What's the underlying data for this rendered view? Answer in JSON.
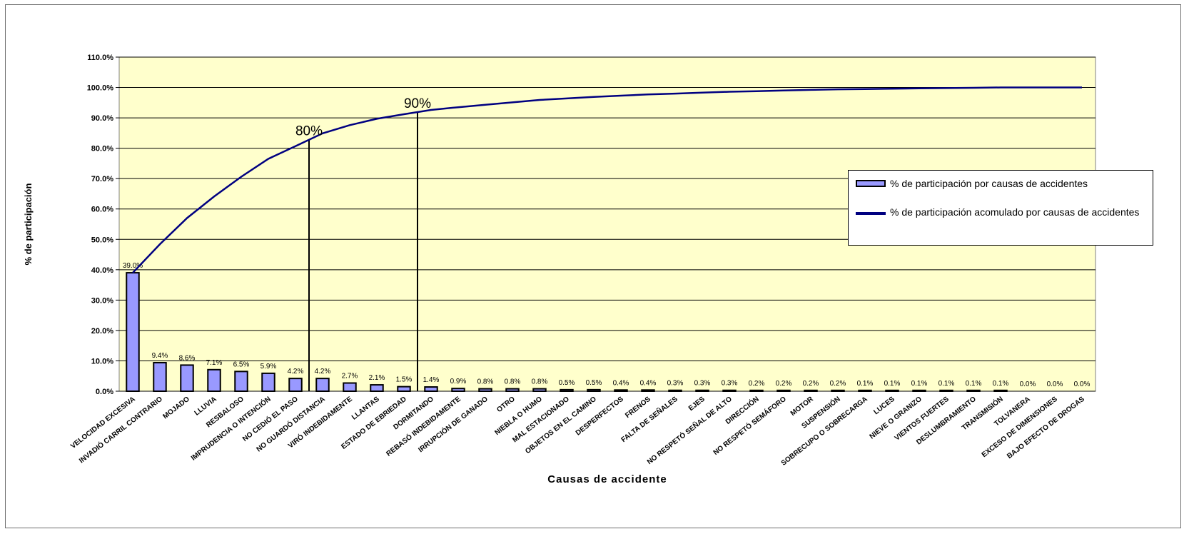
{
  "chart_data": {
    "type": "bar",
    "xlabel": "Causas de accidente",
    "ylabel": "% de participación",
    "ylim": [
      0,
      110
    ],
    "y_ticks": [
      "0.0%",
      "10.0%",
      "20.0%",
      "30.0%",
      "40.0%",
      "50.0%",
      "60.0%",
      "70.0%",
      "80.0%",
      "90.0%",
      "100.0%",
      "110.0%"
    ],
    "grid": "horizontal",
    "plot_background": "#ffffcc",
    "legend_position": "right",
    "categories": [
      "VELOCIDAD EXCESIVA",
      "INVADIÓ CARRIL CONTRARIO",
      "MOJADO",
      "LLUVIA",
      "RESBALOSO",
      "IMPRUDENCIA O INTENCIÓN",
      "NO CEDIÓ EL PASO",
      "NO GUARDÓ DISTANCIA",
      "VIRÓ INDEBIDAMENTE",
      "LLANTAS",
      "ESTADO DE EBRIEDAD",
      "DORMITANDO",
      "REBASÓ INDEBIDAMENTE",
      "IRRUPCIÓN DE GANADO",
      "OTRO",
      "NIEBLA O HUMO",
      "MAL ESTACIONADO",
      "OBJETOS EN EL CAMINO",
      "DESPERFECTOS",
      "FRENOS",
      "FALTA DE SEÑALES",
      "EJES",
      "NO RESPETÓ SEÑAL DE ALTO",
      "DIRECCIÓN",
      "NO RESPETÓ SEMÁFORO",
      "MOTOR",
      "SUSPENSIÓN",
      "SOBRECUPO O SOBRECARGA",
      "LUCES",
      "NIEVE O GRANIZO",
      "VIENTOS FUERTES",
      "DESLUMBRAMIENTO",
      "TRANSMISIÓN",
      "TOLVANERA",
      "EXCESO DE DIMENSIONES",
      "BAJO EFECTO DE DROGAS"
    ],
    "series": [
      {
        "name": "% de participación por causas de accidentes",
        "type": "bar",
        "color": "#9999ff",
        "values": [
          39.0,
          9.4,
          8.6,
          7.1,
          6.5,
          5.9,
          4.2,
          4.2,
          2.7,
          2.1,
          1.5,
          1.4,
          0.9,
          0.8,
          0.8,
          0.8,
          0.5,
          0.5,
          0.4,
          0.4,
          0.3,
          0.3,
          0.3,
          0.2,
          0.2,
          0.2,
          0.2,
          0.1,
          0.1,
          0.1,
          0.1,
          0.1,
          0.1,
          0.0,
          0.0,
          0.0
        ],
        "labels": [
          "39.0%",
          "9.4%",
          "8.6%",
          "7.1%",
          "6.5%",
          "5.9%",
          "4.2%",
          "4.2%",
          "2.7%",
          "2.1%",
          "1.5%",
          "1.4%",
          "0.9%",
          "0.8%",
          "0.8%",
          "0.8%",
          "0.5%",
          "0.5%",
          "0.4%",
          "0.4%",
          "0.3%",
          "0.3%",
          "0.3%",
          "0.2%",
          "0.2%",
          "0.2%",
          "0.2%",
          "0.1%",
          "0.1%",
          "0.1%",
          "0.1%",
          "0.1%",
          "0.1%",
          "0.0%",
          "0.0%",
          "0.0%"
        ]
      },
      {
        "name": "% de participación acomulado por causas de accidentes",
        "type": "line",
        "color": "#000080",
        "values": [
          39.0,
          48.4,
          57.0,
          64.1,
          70.6,
          76.5,
          80.7,
          84.9,
          87.6,
          89.7,
          91.2,
          92.6,
          93.5,
          94.3,
          95.1,
          95.9,
          96.4,
          96.9,
          97.3,
          97.7,
          98.0,
          98.3,
          98.6,
          98.8,
          99.0,
          99.2,
          99.4,
          99.5,
          99.6,
          99.7,
          99.8,
          99.9,
          100.0,
          100.0,
          100.0,
          100.0
        ]
      }
    ],
    "annotations": [
      {
        "text": "80%",
        "category_index": 6
      },
      {
        "text": "90%",
        "category_index": 10
      }
    ]
  }
}
